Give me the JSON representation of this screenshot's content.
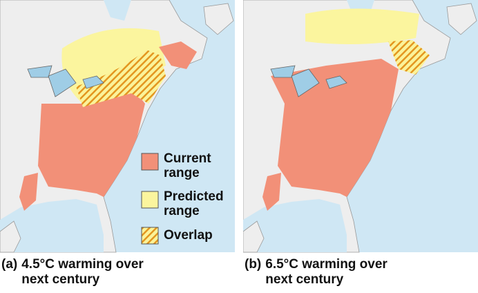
{
  "legend": [
    {
      "label": "Current range"
    },
    {
      "label": "Predicted range"
    },
    {
      "label": "Overlap"
    }
  ],
  "panels": [
    {
      "label": "(a)",
      "caption": "4.5°C warming over next century"
    },
    {
      "label": "(b)",
      "caption": "6.5°C warming over next century"
    }
  ]
}
